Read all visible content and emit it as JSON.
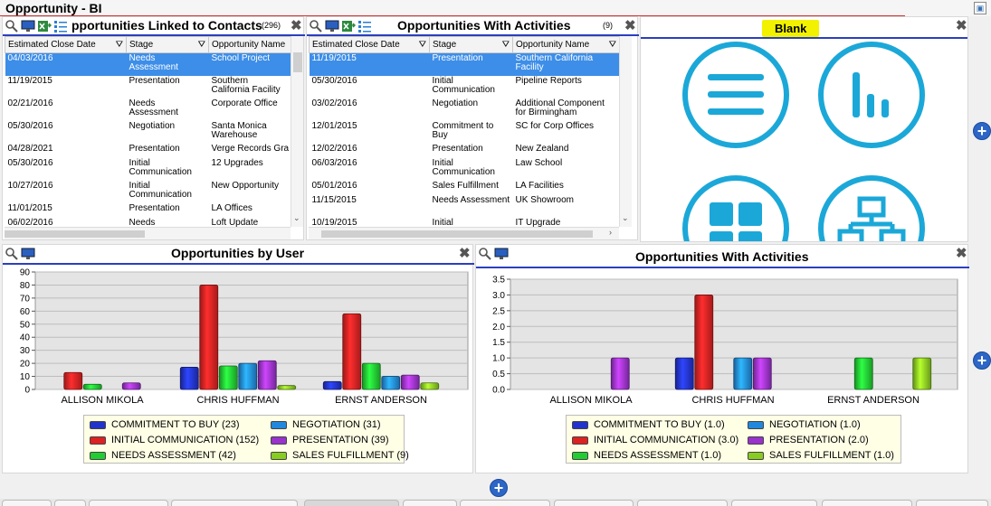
{
  "app": {
    "title": "Opportunity - BI"
  },
  "grid1": {
    "title": "pportunities Linked to Contacts",
    "count": "(296)",
    "columns": [
      "Estimated Close Date",
      "Stage",
      "Opportunity Name"
    ],
    "rows": [
      [
        "04/03/2016",
        "Needs Assessment",
        "School Project"
      ],
      [
        "11/19/2015",
        "Presentation",
        "Southern California Facility"
      ],
      [
        "02/21/2016",
        "Needs Assessment",
        "Corporate Office"
      ],
      [
        "05/30/2016",
        "Negotiation",
        "Santa Monica Warehouse"
      ],
      [
        "04/28/2021",
        "Presentation",
        "Verge Records Gra"
      ],
      [
        "05/30/2016",
        "Initial Communication",
        "12 Upgrades"
      ],
      [
        "10/27/2016",
        "Initial Communication",
        "New Opportunity"
      ],
      [
        "11/01/2015",
        "Presentation",
        "LA Offices"
      ],
      [
        "06/02/2016",
        "Needs",
        "Loft Update"
      ]
    ]
  },
  "grid2": {
    "title": "Opportunities With Activities",
    "count": "(9)",
    "columns": [
      "Estimated Close Date",
      "Stage",
      "Opportunity Name"
    ],
    "rows": [
      [
        "11/19/2015",
        "Presentation",
        "Southern California Facility"
      ],
      [
        "05/30/2016",
        "Initial Communication",
        "Pipeline Reports"
      ],
      [
        "03/02/2016",
        "Negotiation",
        "Additional Component for Birmingham"
      ],
      [
        "12/01/2015",
        "Commitment to Buy",
        "SC for Corp Offices"
      ],
      [
        "12/02/2016",
        "Presentation",
        "New Zealand"
      ],
      [
        "06/03/2016",
        "Initial Communication",
        "Law School"
      ],
      [
        "05/01/2016",
        "Sales Fulfillment",
        "LA Facilities"
      ],
      [
        "11/15/2015",
        "Needs Assessment",
        "UK Showroom"
      ],
      [
        "10/19/2015",
        "Initial",
        "IT Upgrade"
      ]
    ]
  },
  "blank_panel": {
    "title": "Blank",
    "icons": [
      "list-icon",
      "bar-chart-icon",
      "grid-icon",
      "org-chart-icon"
    ]
  },
  "colors": {
    "commitment": "#2233cc",
    "initial": "#dd2222",
    "needs": "#22cc33",
    "negotiation": "#2288dd",
    "presentation": "#9933cc",
    "fulfillment": "#88cc22"
  },
  "chart1_title": "Opportunities by User",
  "chart2_title": "Opportunities With Activities",
  "chart_data": [
    {
      "type": "bar",
      "title": "Opportunities by User",
      "categories": [
        "ALLISON MIKOLA",
        "CHRIS HUFFMAN",
        "ERNST ANDERSON"
      ],
      "ylim": [
        0,
        90
      ],
      "yticks": [
        "0",
        "10",
        "20",
        "30",
        "40",
        "50",
        "60",
        "70",
        "80",
        "90"
      ],
      "grid": true,
      "legend_position": "bottom",
      "series": [
        {
          "name": "COMMITMENT TO BUY (23)",
          "values": [
            0,
            17,
            6
          ]
        },
        {
          "name": "INITIAL COMMUNICATION (152)",
          "values": [
            13,
            80,
            58
          ]
        },
        {
          "name": "NEEDS ASSESSMENT (42)",
          "values": [
            4,
            18,
            20
          ]
        },
        {
          "name": "NEGOTIATION (31)",
          "values": [
            0,
            20,
            10
          ]
        },
        {
          "name": "PRESENTATION (39)",
          "values": [
            5,
            22,
            11
          ]
        },
        {
          "name": "SALES FULFILLMENT (9)",
          "values": [
            0,
            3,
            5
          ]
        }
      ]
    },
    {
      "type": "bar",
      "title": "Opportunities With Activities",
      "categories": [
        "ALLISON MIKOLA",
        "CHRIS HUFFMAN",
        "ERNST ANDERSON"
      ],
      "ylim": [
        0,
        3.5
      ],
      "yticks": [
        "0.0",
        "0.5",
        "1.0",
        "1.5",
        "2.0",
        "2.5",
        "3.0",
        "3.5"
      ],
      "grid": true,
      "legend_position": "bottom",
      "series": [
        {
          "name": "COMMITMENT TO BUY (1.0)",
          "values": [
            0,
            1,
            0
          ]
        },
        {
          "name": "INITIAL COMMUNICATION (3.0)",
          "values": [
            0,
            3,
            0
          ]
        },
        {
          "name": "NEEDS ASSESSMENT (1.0)",
          "values": [
            0,
            0,
            1
          ]
        },
        {
          "name": "NEGOTIATION (1.0)",
          "values": [
            0,
            1,
            0
          ]
        },
        {
          "name": "PRESENTATION (2.0)",
          "values": [
            1,
            1,
            0
          ]
        },
        {
          "name": "SALES FULFILLMENT (1.0)",
          "values": [
            0,
            0,
            1
          ]
        }
      ]
    }
  ]
}
